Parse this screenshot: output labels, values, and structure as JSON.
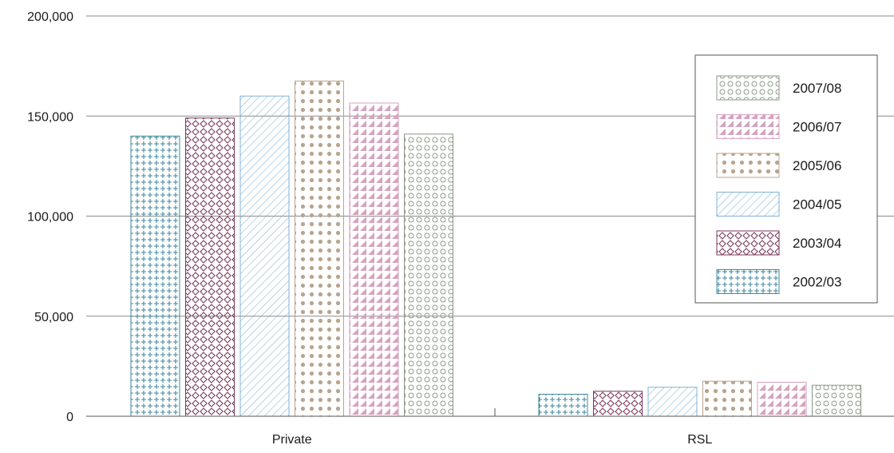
{
  "chart_data": {
    "type": "bar",
    "categories": [
      "Private",
      "RSL"
    ],
    "series": [
      {
        "name": "2002/03",
        "values": [
          140000,
          11000
        ],
        "color": "#3f8a9c",
        "pattern": "plus"
      },
      {
        "name": "2003/04",
        "values": [
          149000,
          12500
        ],
        "color": "#7a3a5f",
        "pattern": "diamond"
      },
      {
        "name": "2004/05",
        "values": [
          160000,
          14500
        ],
        "color": "#7fb2d4",
        "pattern": "diagonal"
      },
      {
        "name": "2005/06",
        "values": [
          167500,
          17500
        ],
        "color": "#b9a48f",
        "pattern": "dot"
      },
      {
        "name": "2006/07",
        "values": [
          156500,
          17000
        ],
        "color": "#d7a3bf",
        "pattern": "triangle"
      },
      {
        "name": "2007/08",
        "values": [
          141000,
          15500
        ],
        "color": "#8c9b86",
        "pattern": "circle"
      }
    ],
    "title": "",
    "xlabel": "",
    "ylabel": "",
    "ylim": [
      0,
      200000
    ],
    "yticks": [
      0,
      50000,
      100000,
      150000,
      200000
    ],
    "ytick_labels": [
      "0",
      "50,000",
      "100,000",
      "150,000",
      "200,000"
    ],
    "grid": true,
    "legend_position": "right",
    "legend_order": [
      "2007/08",
      "2006/07",
      "2005/06",
      "2004/05",
      "2003/04",
      "2002/03"
    ]
  }
}
